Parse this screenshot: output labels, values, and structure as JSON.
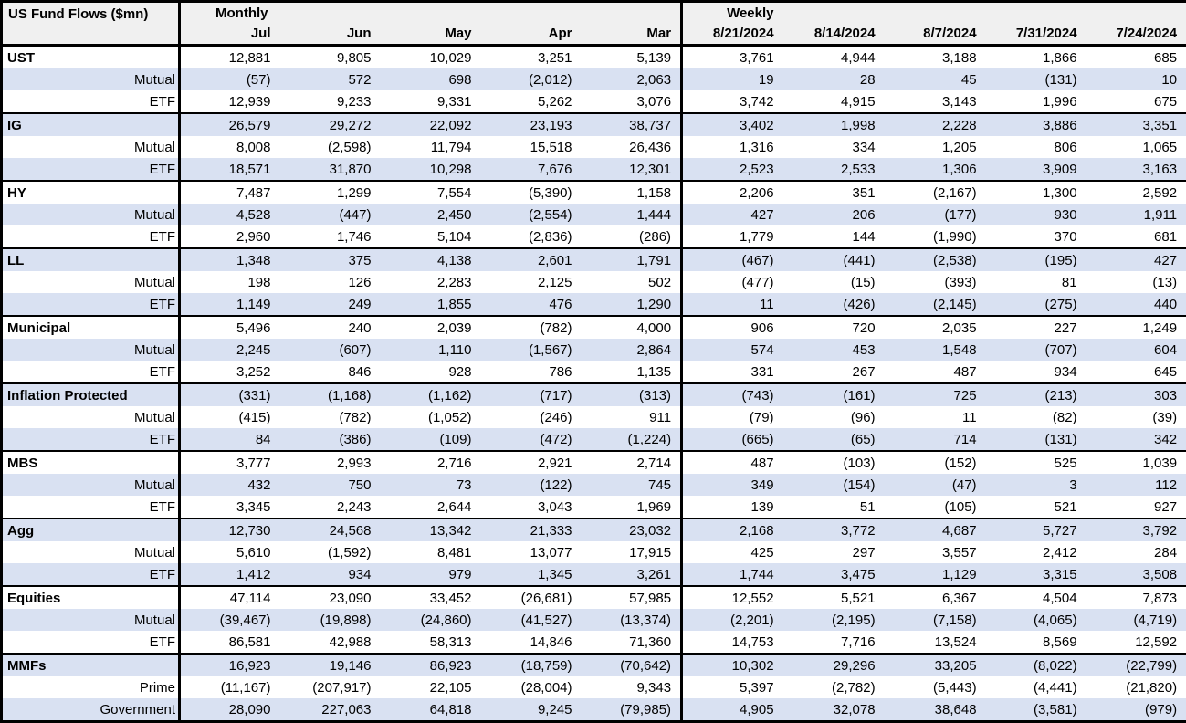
{
  "title": "US Fund Flows ($mn)",
  "colors": {
    "band_blue": "#d9e1f2",
    "header_gray": "#f0f0f0",
    "border_black": "#000000",
    "background_white": "#ffffff",
    "text": "#000000"
  },
  "chart_data": {
    "type": "table",
    "title": "US Fund Flows ($mn)",
    "column_groups": [
      {
        "label": "Monthly",
        "columns": [
          "Jul",
          "Jun",
          "May",
          "Apr",
          "Mar"
        ]
      },
      {
        "label": "Weekly",
        "columns": [
          "8/21/2024",
          "8/14/2024",
          "8/7/2024",
          "7/31/2024",
          "7/24/2024"
        ]
      }
    ],
    "rows": [
      {
        "label": "UST",
        "type": "group",
        "monthly": [
          "12,881",
          "9,805",
          "10,029",
          "3,251",
          "5,139"
        ],
        "weekly": [
          "3,761",
          "4,944",
          "3,188",
          "1,866",
          "685"
        ]
      },
      {
        "label": "Mutual",
        "type": "sub",
        "monthly": [
          "(57)",
          "572",
          "698",
          "(2,012)",
          "2,063"
        ],
        "weekly": [
          "19",
          "28",
          "45",
          "(131)",
          "10"
        ]
      },
      {
        "label": "ETF",
        "type": "sub",
        "monthly": [
          "12,939",
          "9,233",
          "9,331",
          "5,262",
          "3,076"
        ],
        "weekly": [
          "3,742",
          "4,915",
          "3,143",
          "1,996",
          "675"
        ]
      },
      {
        "label": "IG",
        "type": "group",
        "monthly": [
          "26,579",
          "29,272",
          "22,092",
          "23,193",
          "38,737"
        ],
        "weekly": [
          "3,402",
          "1,998",
          "2,228",
          "3,886",
          "3,351"
        ]
      },
      {
        "label": "Mutual",
        "type": "sub",
        "monthly": [
          "8,008",
          "(2,598)",
          "11,794",
          "15,518",
          "26,436"
        ],
        "weekly": [
          "1,316",
          "334",
          "1,205",
          "806",
          "1,065"
        ]
      },
      {
        "label": "ETF",
        "type": "sub",
        "monthly": [
          "18,571",
          "31,870",
          "10,298",
          "7,676",
          "12,301"
        ],
        "weekly": [
          "2,523",
          "2,533",
          "1,306",
          "3,909",
          "3,163"
        ]
      },
      {
        "label": "HY",
        "type": "group",
        "monthly": [
          "7,487",
          "1,299",
          "7,554",
          "(5,390)",
          "1,158"
        ],
        "weekly": [
          "2,206",
          "351",
          "(2,167)",
          "1,300",
          "2,592"
        ]
      },
      {
        "label": "Mutual",
        "type": "sub",
        "monthly": [
          "4,528",
          "(447)",
          "2,450",
          "(2,554)",
          "1,444"
        ],
        "weekly": [
          "427",
          "206",
          "(177)",
          "930",
          "1,911"
        ]
      },
      {
        "label": "ETF",
        "type": "sub",
        "monthly": [
          "2,960",
          "1,746",
          "5,104",
          "(2,836)",
          "(286)"
        ],
        "weekly": [
          "1,779",
          "144",
          "(1,990)",
          "370",
          "681"
        ]
      },
      {
        "label": "LL",
        "type": "group",
        "monthly": [
          "1,348",
          "375",
          "4,138",
          "2,601",
          "1,791"
        ],
        "weekly": [
          "(467)",
          "(441)",
          "(2,538)",
          "(195)",
          "427"
        ]
      },
      {
        "label": "Mutual",
        "type": "sub",
        "monthly": [
          "198",
          "126",
          "2,283",
          "2,125",
          "502"
        ],
        "weekly": [
          "(477)",
          "(15)",
          "(393)",
          "81",
          "(13)"
        ]
      },
      {
        "label": "ETF",
        "type": "sub",
        "monthly": [
          "1,149",
          "249",
          "1,855",
          "476",
          "1,290"
        ],
        "weekly": [
          "11",
          "(426)",
          "(2,145)",
          "(275)",
          "440"
        ]
      },
      {
        "label": "Municipal",
        "type": "group",
        "monthly": [
          "5,496",
          "240",
          "2,039",
          "(782)",
          "4,000"
        ],
        "weekly": [
          "906",
          "720",
          "2,035",
          "227",
          "1,249"
        ]
      },
      {
        "label": "Mutual",
        "type": "sub",
        "monthly": [
          "2,245",
          "(607)",
          "1,110",
          "(1,567)",
          "2,864"
        ],
        "weekly": [
          "574",
          "453",
          "1,548",
          "(707)",
          "604"
        ]
      },
      {
        "label": "ETF",
        "type": "sub",
        "monthly": [
          "3,252",
          "846",
          "928",
          "786",
          "1,135"
        ],
        "weekly": [
          "331",
          "267",
          "487",
          "934",
          "645"
        ]
      },
      {
        "label": "Inflation Protected",
        "type": "group",
        "monthly": [
          "(331)",
          "(1,168)",
          "(1,162)",
          "(717)",
          "(313)"
        ],
        "weekly": [
          "(743)",
          "(161)",
          "725",
          "(213)",
          "303"
        ]
      },
      {
        "label": "Mutual",
        "type": "sub",
        "monthly": [
          "(415)",
          "(782)",
          "(1,052)",
          "(246)",
          "911"
        ],
        "weekly": [
          "(79)",
          "(96)",
          "11",
          "(82)",
          "(39)"
        ]
      },
      {
        "label": "ETF",
        "type": "sub",
        "monthly": [
          "84",
          "(386)",
          "(109)",
          "(472)",
          "(1,224)"
        ],
        "weekly": [
          "(665)",
          "(65)",
          "714",
          "(131)",
          "342"
        ]
      },
      {
        "label": "MBS",
        "type": "group",
        "monthly": [
          "3,777",
          "2,993",
          "2,716",
          "2,921",
          "2,714"
        ],
        "weekly": [
          "487",
          "(103)",
          "(152)",
          "525",
          "1,039"
        ]
      },
      {
        "label": "Mutual",
        "type": "sub",
        "monthly": [
          "432",
          "750",
          "73",
          "(122)",
          "745"
        ],
        "weekly": [
          "349",
          "(154)",
          "(47)",
          "3",
          "112"
        ]
      },
      {
        "label": "ETF",
        "type": "sub",
        "monthly": [
          "3,345",
          "2,243",
          "2,644",
          "3,043",
          "1,969"
        ],
        "weekly": [
          "139",
          "51",
          "(105)",
          "521",
          "927"
        ]
      },
      {
        "label": "Agg",
        "type": "group",
        "monthly": [
          "12,730",
          "24,568",
          "13,342",
          "21,333",
          "23,032"
        ],
        "weekly": [
          "2,168",
          "3,772",
          "4,687",
          "5,727",
          "3,792"
        ]
      },
      {
        "label": "Mutual",
        "type": "sub",
        "monthly": [
          "5,610",
          "(1,592)",
          "8,481",
          "13,077",
          "17,915"
        ],
        "weekly": [
          "425",
          "297",
          "3,557",
          "2,412",
          "284"
        ]
      },
      {
        "label": "ETF",
        "type": "sub",
        "monthly": [
          "1,412",
          "934",
          "979",
          "1,345",
          "3,261"
        ],
        "weekly": [
          "1,744",
          "3,475",
          "1,129",
          "3,315",
          "3,508"
        ]
      },
      {
        "label": "Equities",
        "type": "group",
        "monthly": [
          "47,114",
          "23,090",
          "33,452",
          "(26,681)",
          "57,985"
        ],
        "weekly": [
          "12,552",
          "5,521",
          "6,367",
          "4,504",
          "7,873"
        ]
      },
      {
        "label": "Mutual",
        "type": "sub",
        "monthly": [
          "(39,467)",
          "(19,898)",
          "(24,860)",
          "(41,527)",
          "(13,374)"
        ],
        "weekly": [
          "(2,201)",
          "(2,195)",
          "(7,158)",
          "(4,065)",
          "(4,719)"
        ]
      },
      {
        "label": "ETF",
        "type": "sub",
        "monthly": [
          "86,581",
          "42,988",
          "58,313",
          "14,846",
          "71,360"
        ],
        "weekly": [
          "14,753",
          "7,716",
          "13,524",
          "8,569",
          "12,592"
        ]
      },
      {
        "label": "MMFs",
        "type": "group",
        "monthly": [
          "16,923",
          "19,146",
          "86,923",
          "(18,759)",
          "(70,642)"
        ],
        "weekly": [
          "10,302",
          "29,296",
          "33,205",
          "(8,022)",
          "(22,799)"
        ]
      },
      {
        "label": "Prime",
        "type": "sub",
        "monthly": [
          "(11,167)",
          "(207,917)",
          "22,105",
          "(28,004)",
          "9,343"
        ],
        "weekly": [
          "5,397",
          "(2,782)",
          "(5,443)",
          "(4,441)",
          "(21,820)"
        ]
      },
      {
        "label": "Government",
        "type": "sub",
        "monthly": [
          "28,090",
          "227,063",
          "64,818",
          "9,245",
          "(79,985)"
        ],
        "weekly": [
          "4,905",
          "32,078",
          "38,648",
          "(3,581)",
          "(979)"
        ]
      }
    ]
  }
}
